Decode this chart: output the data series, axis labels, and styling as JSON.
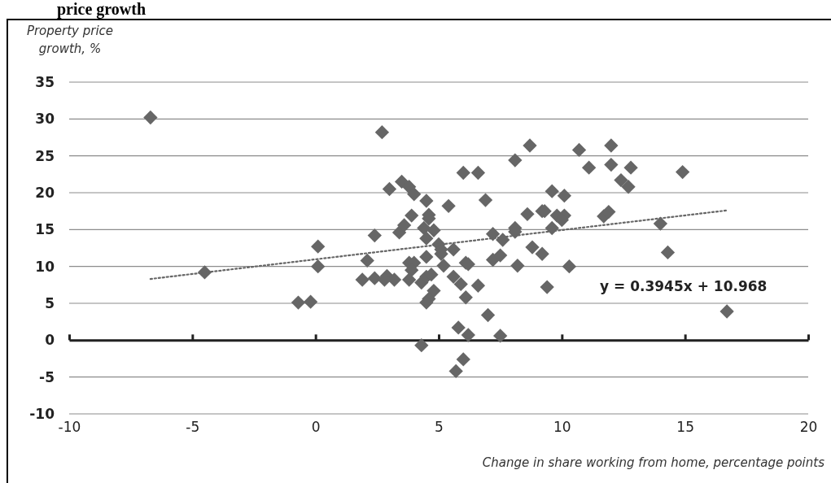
{
  "chart_data": {
    "type": "scatter",
    "title": "price growth",
    "xlabel": "Change in share working from home, percentage points",
    "ylabel": "Property price growth, %",
    "xlim": [
      -10,
      20
    ],
    "xticks": [
      -10,
      -5,
      0,
      5,
      10,
      15,
      20
    ],
    "ylim": [
      -10,
      35
    ],
    "yticks": [
      -10,
      -5,
      0,
      5,
      10,
      15,
      20,
      25,
      30,
      35
    ],
    "grid": "y",
    "marker": "diamond",
    "annotations": [
      "y = 0.3945x + 10.968"
    ],
    "series": [
      {
        "color": "#666666",
        "x": [
          -6.7,
          -4.5,
          -0.7,
          -0.2,
          0.1,
          0.1,
          1.9,
          2.1,
          2.4,
          2.4,
          2.7,
          2.9,
          3.0,
          3.2,
          3.4,
          3.5,
          3.6,
          3.8,
          4.0,
          4.5,
          5.4,
          6.9,
          9.6,
          10.1,
          3.9,
          4.6,
          4.6,
          8.6,
          9.2,
          9.3,
          9.8,
          10.1,
          10.0,
          4.4,
          4.8,
          4.5,
          7.2,
          7.6,
          8.1,
          8.1,
          9.6,
          5.0,
          5.1,
          5.6,
          5.1,
          4.5,
          7.2,
          7.5,
          8.8,
          9.2,
          3.8,
          4.0,
          3.9,
          5.2,
          6.1,
          6.2,
          8.2,
          10.3,
          2.8,
          3.8,
          4.3,
          4.5,
          4.7,
          5.6,
          5.9,
          6.6,
          9.4,
          4.8,
          4.6,
          4.5,
          6.1,
          7.0,
          5.8,
          6.2,
          7.5,
          4.3,
          6.0,
          5.7,
          8.7,
          8.1,
          10.7,
          6.0,
          6.6,
          12.0,
          11.1,
          12.0,
          12.8,
          12.4,
          12.7,
          14.9,
          11.7,
          11.9,
          14.0,
          14.3,
          16.7
        ],
        "values": [
          30.2,
          9.2,
          5.1,
          5.2,
          12.7,
          10.0,
          8.2,
          10.8,
          8.4,
          14.2,
          28.2,
          8.7,
          20.5,
          8.2,
          14.6,
          21.5,
          15.6,
          20.8,
          19.8,
          18.9,
          18.2,
          19.0,
          20.2,
          19.6,
          16.9,
          17.0,
          16.5,
          17.1,
          17.5,
          17.5,
          16.9,
          16.9,
          16.3,
          15.2,
          14.9,
          13.8,
          14.4,
          13.6,
          15.2,
          14.7,
          15.2,
          13.0,
          12.3,
          12.3,
          11.7,
          11.3,
          10.9,
          11.5,
          12.6,
          11.7,
          10.5,
          10.5,
          9.5,
          10.1,
          10.5,
          10.3,
          10.1,
          10.0,
          8.2,
          8.2,
          7.8,
          8.6,
          8.9,
          8.6,
          7.6,
          7.4,
          7.2,
          6.7,
          5.6,
          5.1,
          5.8,
          3.4,
          1.7,
          0.7,
          0.6,
          -0.7,
          -2.6,
          -4.2,
          26.4,
          24.4,
          25.8,
          22.7,
          22.7,
          26.4,
          23.4,
          23.8,
          23.4,
          21.7,
          20.8,
          22.8,
          16.8,
          17.4,
          15.8,
          11.9,
          3.9
        ]
      },
      {
        "type": "line",
        "color": "#666666",
        "line_style": "dotted",
        "marker": "none",
        "x": [
          -6.7,
          16.7
        ],
        "values": [
          8.3,
          17.6
        ]
      }
    ]
  }
}
